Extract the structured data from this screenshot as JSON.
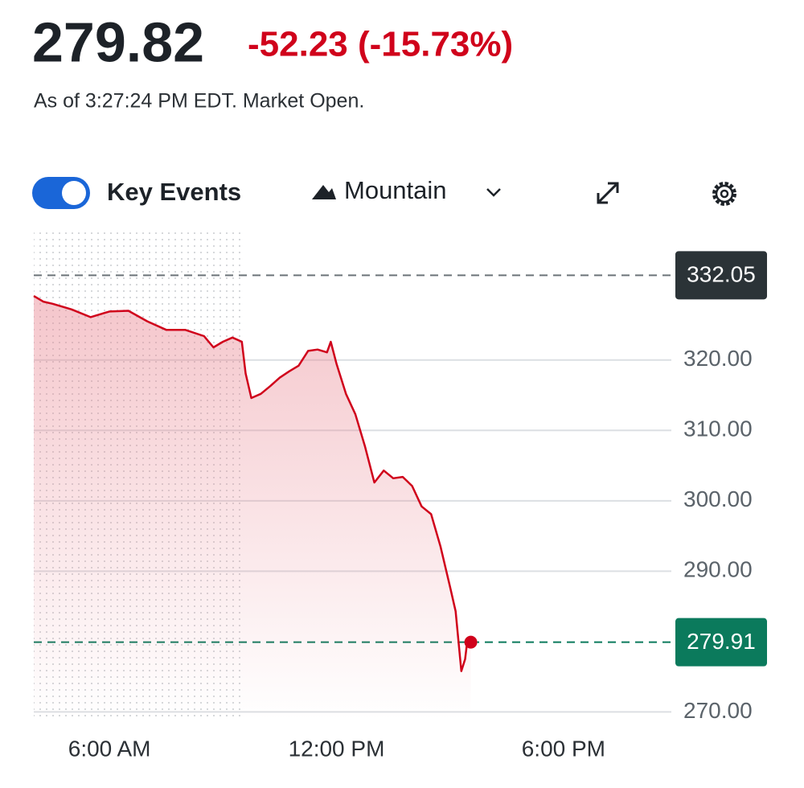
{
  "header": {
    "price": "279.82",
    "change": "-52.23 (-15.73%)",
    "timestamp": "As of 3:27:24 PM EDT. Market Open."
  },
  "controls": {
    "key_events": "Key Events",
    "chart_style": "Mountain"
  },
  "chart_data": {
    "type": "line",
    "area": true,
    "color": "#d0021b",
    "x": [
      4.0,
      4.25,
      4.5,
      5.0,
      5.5,
      6.0,
      6.5,
      7.0,
      7.5,
      8.0,
      8.5,
      8.75,
      9.0,
      9.25,
      9.5,
      9.6,
      9.75,
      10.0,
      10.25,
      10.5,
      10.75,
      11.0,
      11.25,
      11.5,
      11.75,
      11.85,
      12.0,
      12.25,
      12.5,
      12.75,
      13.0,
      13.25,
      13.5,
      13.75,
      14.0,
      14.25,
      14.5,
      14.75,
      15.0,
      15.15,
      15.3,
      15.4,
      15.45,
      15.55
    ],
    "values": [
      329.1,
      328.3,
      328.0,
      327.2,
      326.1,
      326.9,
      327.0,
      325.5,
      324.3,
      324.3,
      323.4,
      321.8,
      322.6,
      323.2,
      322.6,
      318.1,
      314.6,
      315.2,
      316.3,
      317.5,
      318.4,
      319.2,
      321.3,
      321.5,
      321.1,
      322.6,
      319.5,
      315.2,
      312.3,
      307.8,
      302.6,
      304.3,
      303.2,
      303.4,
      302.1,
      299.2,
      298.1,
      293.5,
      287.8,
      284.3,
      275.8,
      277.5,
      279.8,
      279.91
    ],
    "xlim": [
      4.0,
      20.85
    ],
    "ylim": [
      268.9,
      338.6
    ],
    "xticks": [
      {
        "value": 6,
        "label": "6:00 AM"
      },
      {
        "value": 12,
        "label": "12:00 PM"
      },
      {
        "value": 18,
        "label": "6:00 PM"
      }
    ],
    "yticks": [
      {
        "value": 270,
        "label": "270.00"
      },
      {
        "value": 290,
        "label": "290.00"
      },
      {
        "value": 300,
        "label": "300.00"
      },
      {
        "value": 310,
        "label": "310.00"
      },
      {
        "value": 320,
        "label": "320.00"
      }
    ],
    "session_start": 9.5,
    "reference_lines": [
      {
        "value": 332.05,
        "color": "#2b3337",
        "line_color": "#6b7378"
      },
      {
        "value": 279.91,
        "color": "#0b7a5c",
        "line_color": "#0b7a5c"
      }
    ],
    "grid": true
  }
}
